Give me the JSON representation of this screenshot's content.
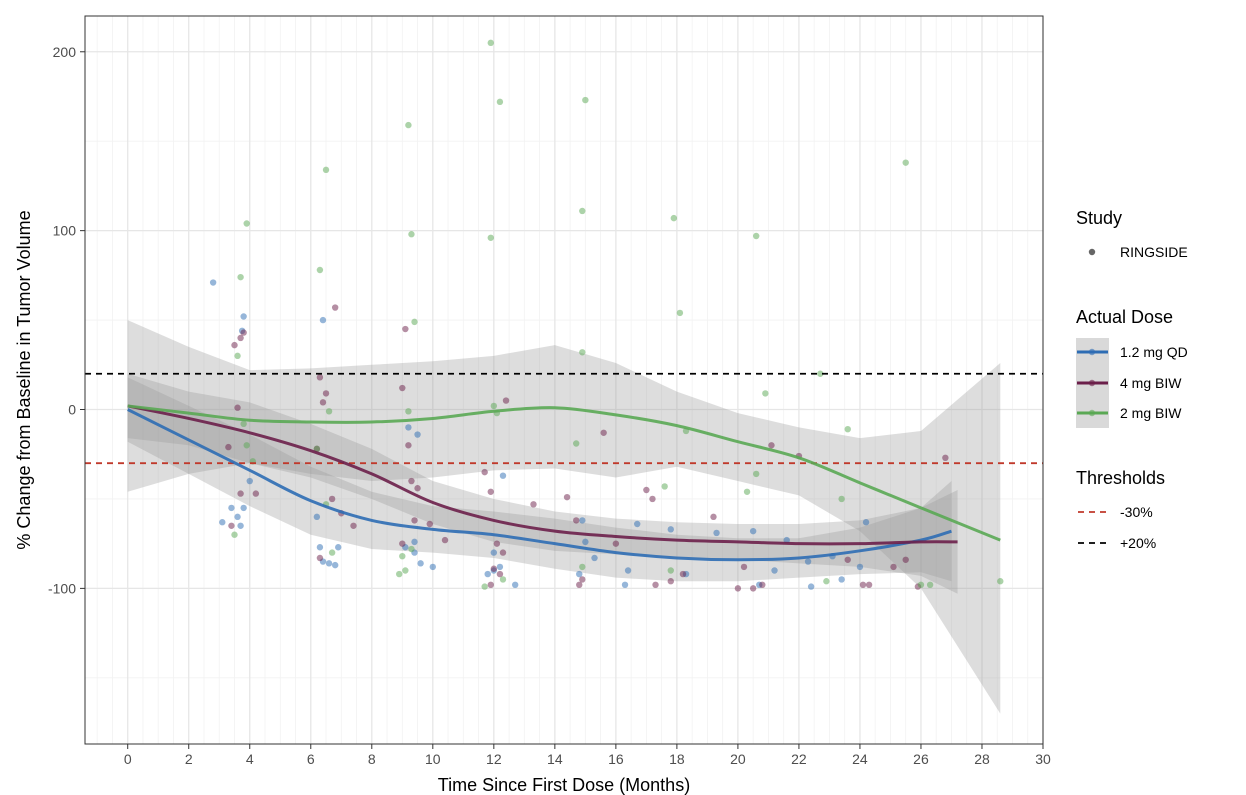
{
  "chart_data": {
    "type": "scatter",
    "xlabel": "Time Since First Dose (Months)",
    "ylabel": "% Change from Baseline in Tumor Volume",
    "xlim": [
      -1.4,
      30
    ],
    "ylim": [
      -187,
      220
    ],
    "x_ticks": [
      0,
      2,
      4,
      6,
      8,
      10,
      12,
      14,
      16,
      18,
      20,
      22,
      24,
      26,
      28,
      30
    ],
    "y_ticks": [
      -100,
      0,
      100,
      200
    ],
    "grid": true,
    "legend_position": "right",
    "study_legend": {
      "title": "Study",
      "entries": [
        "RINGSIDE"
      ]
    },
    "dose_legend": {
      "title": "Actual Dose",
      "entries": [
        "1.2 mg QD",
        "4 mg BIW",
        "2 mg BIW"
      ]
    },
    "threshold_legend": {
      "title": "Thresholds",
      "entries": [
        "-30%",
        "+20%"
      ]
    },
    "thresholds": [
      {
        "name": "-30%",
        "value": -30,
        "color": "#c0392b"
      },
      {
        "name": "+20%",
        "value": 20,
        "color": "#000000"
      }
    ],
    "series": [
      {
        "name": "1.2 mg QD",
        "color": "#2e6db4",
        "smooth": [
          [
            0,
            0
          ],
          [
            2,
            -17
          ],
          [
            4,
            -34
          ],
          [
            6,
            -51
          ],
          [
            8,
            -62
          ],
          [
            10,
            -67
          ],
          [
            12,
            -70
          ],
          [
            14,
            -75
          ],
          [
            16,
            -80
          ],
          [
            18,
            -83
          ],
          [
            20,
            -84
          ],
          [
            22,
            -83
          ],
          [
            24,
            -79
          ],
          [
            26,
            -73
          ],
          [
            27,
            -68
          ]
        ],
        "band_upper": [
          [
            0,
            18
          ],
          [
            2,
            2
          ],
          [
            4,
            -14
          ],
          [
            6,
            -32
          ],
          [
            8,
            -46
          ],
          [
            10,
            -54
          ],
          [
            12,
            -57
          ],
          [
            14,
            -61
          ],
          [
            16,
            -66
          ],
          [
            18,
            -70
          ],
          [
            20,
            -72
          ],
          [
            22,
            -72
          ],
          [
            24,
            -66
          ],
          [
            26,
            -55
          ],
          [
            27,
            -40
          ]
        ],
        "band_lower": [
          [
            0,
            -18
          ],
          [
            2,
            -36
          ],
          [
            4,
            -54
          ],
          [
            6,
            -70
          ],
          [
            8,
            -78
          ],
          [
            10,
            -80
          ],
          [
            12,
            -83
          ],
          [
            14,
            -89
          ],
          [
            16,
            -94
          ],
          [
            18,
            -96
          ],
          [
            20,
            -96
          ],
          [
            22,
            -94
          ],
          [
            24,
            -92
          ],
          [
            26,
            -91
          ],
          [
            27,
            -96
          ]
        ],
        "points": [
          [
            2.8,
            71
          ],
          [
            3.1,
            -63
          ],
          [
            3.4,
            -55
          ],
          [
            3.6,
            -60
          ],
          [
            3.7,
            -65
          ],
          [
            3.8,
            52
          ],
          [
            3.75,
            44
          ],
          [
            3.8,
            -55
          ],
          [
            4.0,
            -40
          ],
          [
            6.4,
            50
          ],
          [
            6.3,
            -77
          ],
          [
            6.4,
            -85
          ],
          [
            6.6,
            -86
          ],
          [
            6.8,
            -87
          ],
          [
            6.9,
            -77
          ],
          [
            6.2,
            -60
          ],
          [
            9.2,
            -10
          ],
          [
            9.5,
            -14
          ],
          [
            9.4,
            -74
          ],
          [
            9.1,
            -77
          ],
          [
            9.4,
            -80
          ],
          [
            10.0,
            -88
          ],
          [
            9.6,
            -86
          ],
          [
            11.8,
            -92
          ],
          [
            12.0,
            -90
          ],
          [
            12.3,
            -37
          ],
          [
            12.2,
            -88
          ],
          [
            12.0,
            -80
          ],
          [
            12.7,
            -98
          ],
          [
            14.9,
            -62
          ],
          [
            14.8,
            -92
          ],
          [
            15.0,
            -74
          ],
          [
            15.3,
            -83
          ],
          [
            16.4,
            -90
          ],
          [
            16.7,
            -64
          ],
          [
            16.3,
            -98
          ],
          [
            17.8,
            -67
          ],
          [
            18.3,
            -92
          ],
          [
            19.3,
            -69
          ],
          [
            20.5,
            -68
          ],
          [
            20.7,
            -98
          ],
          [
            21.2,
            -90
          ],
          [
            21.6,
            -73
          ],
          [
            22.3,
            -85
          ],
          [
            22.4,
            -99
          ],
          [
            23.1,
            -82
          ],
          [
            24.2,
            -63
          ],
          [
            24.0,
            -88
          ],
          [
            23.4,
            -95
          ]
        ]
      },
      {
        "name": "4 mg BIW",
        "color": "#6b1f4a",
        "smooth": [
          [
            0,
            2
          ],
          [
            2,
            -5
          ],
          [
            4,
            -13
          ],
          [
            6,
            -23
          ],
          [
            8,
            -36
          ],
          [
            10,
            -52
          ],
          [
            12,
            -62
          ],
          [
            14,
            -68
          ],
          [
            16,
            -71
          ],
          [
            18,
            -73
          ],
          [
            20,
            -74
          ],
          [
            22,
            -75
          ],
          [
            24,
            -75
          ],
          [
            26,
            -74
          ],
          [
            27.2,
            -74
          ]
        ],
        "band_upper": [
          [
            0,
            20
          ],
          [
            2,
            10
          ],
          [
            4,
            4
          ],
          [
            6,
            -8
          ],
          [
            8,
            -22
          ],
          [
            10,
            -40
          ],
          [
            12,
            -50
          ],
          [
            14,
            -57
          ],
          [
            16,
            -61
          ],
          [
            18,
            -63
          ],
          [
            20,
            -64
          ],
          [
            22,
            -64
          ],
          [
            24,
            -62
          ],
          [
            26,
            -55
          ],
          [
            27.2,
            -45
          ]
        ],
        "band_lower": [
          [
            0,
            -16
          ],
          [
            2,
            -20
          ],
          [
            4,
            -30
          ],
          [
            6,
            -38
          ],
          [
            8,
            -50
          ],
          [
            10,
            -64
          ],
          [
            12,
            -74
          ],
          [
            14,
            -79
          ],
          [
            16,
            -81
          ],
          [
            18,
            -83
          ],
          [
            20,
            -84
          ],
          [
            22,
            -86
          ],
          [
            24,
            -88
          ],
          [
            26,
            -93
          ],
          [
            27.2,
            -103
          ]
        ],
        "points": [
          [
            3.5,
            36
          ],
          [
            3.7,
            40
          ],
          [
            3.8,
            43
          ],
          [
            3.6,
            1
          ],
          [
            3.4,
            -65
          ],
          [
            3.7,
            -47
          ],
          [
            4.2,
            -47
          ],
          [
            3.3,
            -21
          ],
          [
            6.3,
            18
          ],
          [
            6.5,
            9
          ],
          [
            6.4,
            4
          ],
          [
            6.8,
            57
          ],
          [
            6.2,
            -22
          ],
          [
            6.3,
            -83
          ],
          [
            6.7,
            -50
          ],
          [
            7.0,
            -58
          ],
          [
            7.4,
            -65
          ],
          [
            9.1,
            45
          ],
          [
            9.0,
            12
          ],
          [
            9.2,
            -20
          ],
          [
            9.3,
            -40
          ],
          [
            9.5,
            -44
          ],
          [
            9.4,
            -62
          ],
          [
            9.0,
            -75
          ],
          [
            9.9,
            -64
          ],
          [
            10.4,
            -73
          ],
          [
            11.7,
            -35
          ],
          [
            11.9,
            -46
          ],
          [
            12.4,
            5
          ],
          [
            12.1,
            -75
          ],
          [
            12.3,
            -80
          ],
          [
            12.0,
            -89
          ],
          [
            12.2,
            -92
          ],
          [
            11.9,
            -98
          ],
          [
            13.3,
            -53
          ],
          [
            14.4,
            -49
          ],
          [
            14.7,
            -62
          ],
          [
            14.8,
            -98
          ],
          [
            14.9,
            -95
          ],
          [
            15.6,
            -13
          ],
          [
            16.0,
            -75
          ],
          [
            17.0,
            -45
          ],
          [
            17.2,
            -50
          ],
          [
            17.3,
            -98
          ],
          [
            17.8,
            -96
          ],
          [
            18.2,
            -92
          ],
          [
            19.2,
            -60
          ],
          [
            20.0,
            -100
          ],
          [
            20.2,
            -88
          ],
          [
            20.5,
            -100
          ],
          [
            20.8,
            -98
          ],
          [
            21.1,
            -20
          ],
          [
            22.0,
            -26
          ],
          [
            23.6,
            -84
          ],
          [
            24.1,
            -98
          ],
          [
            24.3,
            -98
          ],
          [
            25.1,
            -88
          ],
          [
            25.5,
            -84
          ],
          [
            25.9,
            -99
          ],
          [
            26.8,
            -27
          ]
        ]
      },
      {
        "name": "2 mg BIW",
        "color": "#5aa854",
        "smooth": [
          [
            0,
            2
          ],
          [
            2,
            -2
          ],
          [
            4,
            -6
          ],
          [
            6,
            -7
          ],
          [
            8,
            -7
          ],
          [
            10,
            -5
          ],
          [
            12,
            -1
          ],
          [
            14,
            1
          ],
          [
            16,
            -3
          ],
          [
            18,
            -9
          ],
          [
            20,
            -18
          ],
          [
            22,
            -27
          ],
          [
            24,
            -41
          ],
          [
            26,
            -55
          ],
          [
            28.6,
            -73
          ]
        ],
        "band_upper": [
          [
            0,
            50
          ],
          [
            2,
            35
          ],
          [
            4,
            22
          ],
          [
            6,
            23
          ],
          [
            8,
            25
          ],
          [
            10,
            27
          ],
          [
            12,
            30
          ],
          [
            14,
            36
          ],
          [
            16,
            26
          ],
          [
            18,
            10
          ],
          [
            20,
            -2
          ],
          [
            22,
            -10
          ],
          [
            24,
            -16
          ],
          [
            26,
            -12
          ],
          [
            28.6,
            26
          ]
        ],
        "band_lower": [
          [
            0,
            -46
          ],
          [
            2,
            -36
          ],
          [
            4,
            -30
          ],
          [
            6,
            -36
          ],
          [
            8,
            -40
          ],
          [
            10,
            -38
          ],
          [
            12,
            -34
          ],
          [
            14,
            -33
          ],
          [
            16,
            -38
          ],
          [
            18,
            -32
          ],
          [
            20,
            -40
          ],
          [
            22,
            -48
          ],
          [
            24,
            -68
          ],
          [
            26,
            -100
          ],
          [
            28.6,
            -170
          ]
        ],
        "points": [
          [
            3.5,
            -70
          ],
          [
            3.6,
            30
          ],
          [
            3.7,
            74
          ],
          [
            3.9,
            104
          ],
          [
            3.8,
            -8
          ],
          [
            4.1,
            -29
          ],
          [
            3.9,
            -20
          ],
          [
            6.3,
            78
          ],
          [
            6.5,
            134
          ],
          [
            6.6,
            -1
          ],
          [
            6.2,
            -22
          ],
          [
            6.5,
            -53
          ],
          [
            6.7,
            -80
          ],
          [
            9.2,
            159
          ],
          [
            9.3,
            98
          ],
          [
            9.4,
            49
          ],
          [
            9.2,
            -1
          ],
          [
            8.9,
            -92
          ],
          [
            9.1,
            -90
          ],
          [
            9.3,
            -78
          ],
          [
            9.0,
            -82
          ],
          [
            11.9,
            205
          ],
          [
            12.2,
            172
          ],
          [
            11.9,
            96
          ],
          [
            12.0,
            2
          ],
          [
            12.1,
            -2
          ],
          [
            11.7,
            -99
          ],
          [
            12.3,
            -95
          ],
          [
            15.0,
            173
          ],
          [
            14.9,
            111
          ],
          [
            14.9,
            32
          ],
          [
            14.7,
            -19
          ],
          [
            14.9,
            -88
          ],
          [
            17.9,
            107
          ],
          [
            18.1,
            54
          ],
          [
            18.3,
            -12
          ],
          [
            17.6,
            -43
          ],
          [
            17.8,
            -90
          ],
          [
            20.6,
            97
          ],
          [
            20.9,
            9
          ],
          [
            20.3,
            -46
          ],
          [
            20.6,
            -36
          ],
          [
            22.7,
            20
          ],
          [
            22.9,
            -96
          ],
          [
            23.4,
            -50
          ],
          [
            23.6,
            -11
          ],
          [
            25.5,
            138
          ],
          [
            26.0,
            -98
          ],
          [
            26.3,
            -98
          ],
          [
            28.6,
            -96
          ]
        ]
      }
    ]
  }
}
